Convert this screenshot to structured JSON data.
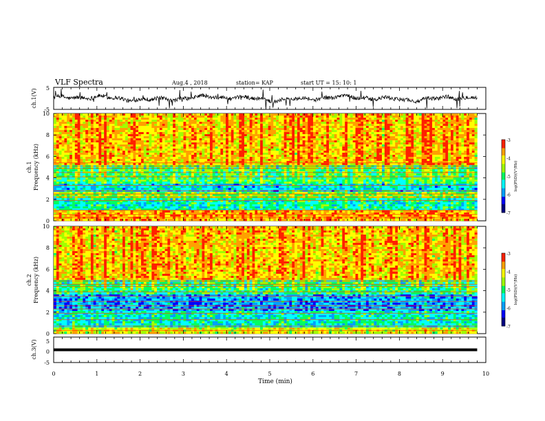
{
  "header": {
    "title": "VLF Spectra",
    "date": "Aug.4 , 2018",
    "station": "station= KAP",
    "start": "start UT =  15: 10: 1"
  },
  "colors": {
    "colormap": [
      "#000080",
      "#0000ff",
      "#00a0ff",
      "#00ffff",
      "#00ff60",
      "#a0ff00",
      "#ffff00",
      "#ffa000",
      "#ff2000",
      "#ffffff"
    ],
    "waveform": "#000000"
  },
  "chart_data": [
    {
      "type": "line",
      "ylabel": "ch.1(V)",
      "ylim": [
        -5,
        5
      ],
      "yticks": [
        "5",
        "-5"
      ],
      "x_range_min": [
        0,
        9.8
      ],
      "description_values": "noisy waveform oscillating roughly between -2 V and 2 V"
    },
    {
      "type": "heatmap",
      "ylabel": "ch.1\nFrequency (kHz)",
      "ylim": [
        0,
        10
      ],
      "yticks": [
        "0",
        "2",
        "4",
        "6",
        "8",
        "10"
      ],
      "x_range_min": [
        0,
        9.8
      ],
      "colorbar": {
        "label": "log(PSD)(V²/Hz)",
        "range": [
          -7,
          -3
        ],
        "ticks": [
          "-3",
          "-4",
          "-5",
          "-6",
          "-7"
        ]
      },
      "bands": [
        {
          "f": [
            0,
            0.9
          ],
          "level": -3.8
        },
        {
          "f": [
            0.9,
            2.1
          ],
          "level": -5.3
        },
        {
          "f": [
            2.1,
            2.7
          ],
          "level": -4.7
        },
        {
          "f": [
            2.7,
            3.5
          ],
          "level": -5.6
        },
        {
          "f": [
            3.5,
            5.2
          ],
          "level": -5.0
        },
        {
          "f": [
            5.2,
            10
          ],
          "level": -4.0
        }
      ],
      "lines_khz": [
        0.3,
        0.6,
        1.0,
        1.9,
        2.2,
        2.5,
        2.8,
        3.3,
        4.1,
        4.5,
        4.9,
        5.1,
        5.4
      ]
    },
    {
      "type": "heatmap",
      "ylabel": "ch.2\nFrequency (kHz)",
      "ylim": [
        0,
        10
      ],
      "yticks": [
        "0",
        "2",
        "4",
        "6",
        "8",
        "10"
      ],
      "x_range_min": [
        0,
        9.8
      ],
      "colorbar": {
        "label": "log(PSD)(V²/Hz)",
        "range": [
          -7,
          -3
        ],
        "ticks": [
          "-3",
          "-4",
          "-5",
          "-6",
          "-7"
        ]
      },
      "bands": [
        {
          "f": [
            0,
            0.5
          ],
          "level": -4.3
        },
        {
          "f": [
            0.5,
            2.1
          ],
          "level": -5.4
        },
        {
          "f": [
            2.1,
            3.6
          ],
          "level": -5.9
        },
        {
          "f": [
            3.6,
            5.0
          ],
          "level": -5.1
        },
        {
          "f": [
            5.0,
            10
          ],
          "level": -4.0
        }
      ],
      "lines_khz": [
        0.3,
        0.7,
        1.3,
        1.9,
        2.3,
        2.6,
        3.0,
        3.5,
        3.9,
        4.4,
        4.6,
        4.9
      ]
    },
    {
      "type": "line",
      "ylabel": "ch.3(V)",
      "ylim": [
        -5,
        5
      ],
      "yticks": [
        "5",
        "0",
        "-5"
      ],
      "x_range_min": [
        0,
        9.8
      ],
      "constant_value": 0
    }
  ],
  "xaxis": {
    "label": "Time (min)",
    "ticks": [
      "0",
      "1",
      "2",
      "3",
      "4",
      "5",
      "6",
      "7",
      "8",
      "9",
      "10"
    ],
    "range": [
      0,
      10
    ]
  }
}
